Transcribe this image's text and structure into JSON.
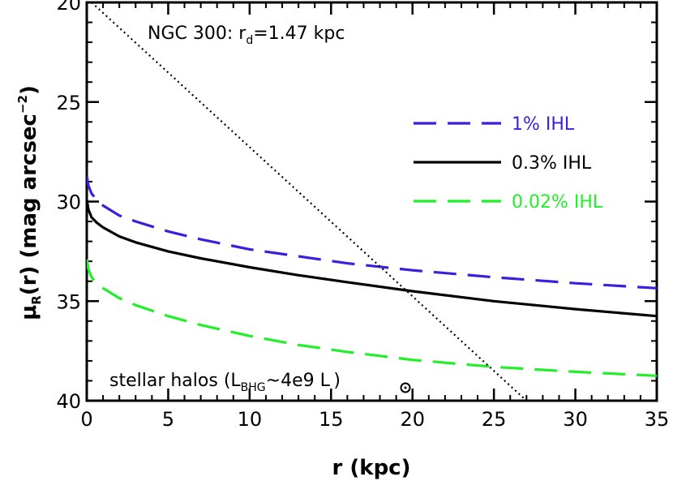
{
  "chart_data": {
    "type": "line",
    "xlabel": "r (kpc)",
    "ylabel": {
      "base": "μ",
      "sub": "R",
      "rest": "(r) (mag arcsec",
      "sup": "−2",
      "close": ")"
    },
    "xlim": [
      0,
      35
    ],
    "ylim": [
      40,
      20
    ],
    "y_inverted": true,
    "x_ticks": [
      0,
      5,
      10,
      15,
      20,
      25,
      30,
      35
    ],
    "y_ticks": [
      20,
      25,
      30,
      35,
      40
    ],
    "x_minor_step": 1,
    "y_minor_step": 1,
    "grid": false,
    "legend_position": "top-right",
    "annotations": {
      "top": {
        "pre": "NGC 300: r",
        "sub": "d",
        "post": "=1.47 kpc"
      },
      "bottom": {
        "pre": "stellar halos (L",
        "sub": "BHG",
        "mid": "~4e9 L",
        "post": ")"
      }
    },
    "series": [
      {
        "name": "1% IHL",
        "color": "#3a1fdc",
        "style": "dashed",
        "x": [
          0,
          0.1,
          0.3,
          0.6,
          1,
          2,
          3,
          5,
          7,
          10,
          13,
          16,
          20,
          25,
          30,
          35
        ],
        "y": [
          28.7,
          29.2,
          29.6,
          29.9,
          30.2,
          30.7,
          31.0,
          31.5,
          31.9,
          32.4,
          32.75,
          33.1,
          33.45,
          33.8,
          34.1,
          34.35
        ]
      },
      {
        "name": "0.3% IHL",
        "color": "#000000",
        "style": "solid",
        "x": [
          0,
          0.1,
          0.3,
          0.6,
          1,
          2,
          3,
          5,
          7,
          10,
          13,
          16,
          20,
          25,
          30,
          35
        ],
        "y": [
          29.9,
          30.4,
          30.8,
          31.05,
          31.3,
          31.75,
          32.05,
          32.5,
          32.85,
          33.3,
          33.7,
          34.05,
          34.5,
          35.0,
          35.4,
          35.75
        ]
      },
      {
        "name": "0.02% IHL",
        "color": "#22ee2a",
        "style": "dashed",
        "x": [
          0,
          0.1,
          0.3,
          0.6,
          1,
          2,
          3,
          5,
          7,
          10,
          13,
          16,
          20,
          25,
          30,
          35
        ],
        "y": [
          32.9,
          33.4,
          33.8,
          34.1,
          34.35,
          34.85,
          35.2,
          35.75,
          36.2,
          36.75,
          37.2,
          37.55,
          37.95,
          38.3,
          38.55,
          38.75
        ]
      },
      {
        "name": "",
        "color": "#000000",
        "style": "dotted",
        "x": [
          0.3,
          27
        ],
        "y": [
          20,
          40
        ]
      }
    ]
  }
}
